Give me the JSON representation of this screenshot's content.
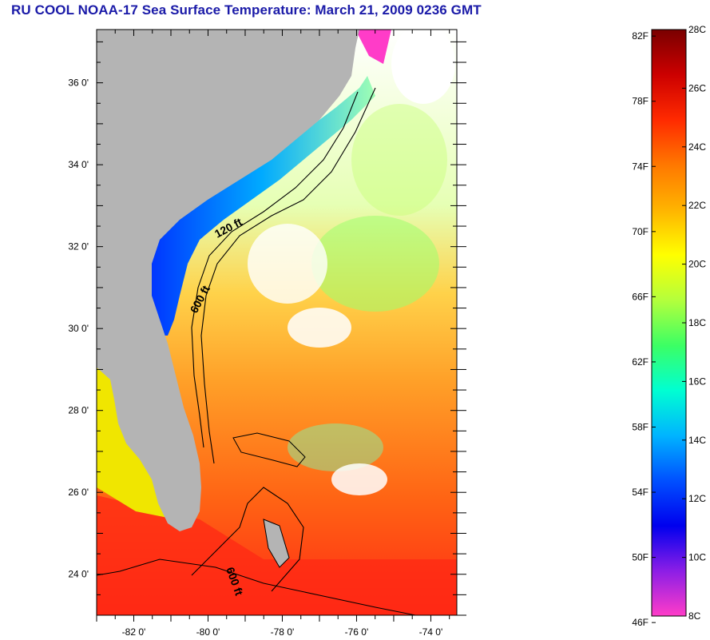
{
  "title": "RU COOL  NOAA-17  Sea Surface Temperature:  March 21, 2009 0236 GMT",
  "map": {
    "lat_range": [
      23,
      37.3
    ],
    "lon_range": [
      -83,
      -73.3
    ],
    "lat_ticks": [
      {
        "value": 36,
        "label": "36 0'"
      },
      {
        "value": 34,
        "label": "34 0'"
      },
      {
        "value": 32,
        "label": "32 0'"
      },
      {
        "value": 30,
        "label": "30 0'"
      },
      {
        "value": 28,
        "label": "28 0'"
      },
      {
        "value": 26,
        "label": "26 0'"
      },
      {
        "value": 24,
        "label": "24 0'"
      }
    ],
    "lon_ticks": [
      {
        "value": -82,
        "label": "-82 0'"
      },
      {
        "value": -80,
        "label": "-80 0'"
      },
      {
        "value": -78,
        "label": "-78 0'"
      },
      {
        "value": -76,
        "label": "-76 0'"
      },
      {
        "value": -74,
        "label": "-74 0'"
      }
    ],
    "contour_labels": [
      "120 ft",
      "600 ft",
      "600 ft"
    ],
    "colors": {
      "land": "#b4b4b4",
      "no_data": "#ffffff",
      "contour": "#000000"
    }
  },
  "colorbar": {
    "fahrenheit_labels": [
      "82F",
      "78F",
      "74F",
      "70F",
      "66F",
      "62F",
      "58F",
      "54F",
      "50F",
      "46F"
    ],
    "celsius_labels": [
      "28C",
      "26C",
      "24C",
      "22C",
      "20C",
      "18C",
      "16C",
      "14C",
      "12C",
      "10C",
      "8C"
    ],
    "range_celsius": [
      8,
      28
    ],
    "gradient": [
      "#7a0000",
      "#cc0000",
      "#ff2a00",
      "#ff7800",
      "#ffb400",
      "#ffff00",
      "#b4ff3c",
      "#3cff64",
      "#00ffd2",
      "#00b4ff",
      "#0050ff",
      "#0000ee",
      "#8c1ee6",
      "#ff3cc8"
    ]
  }
}
